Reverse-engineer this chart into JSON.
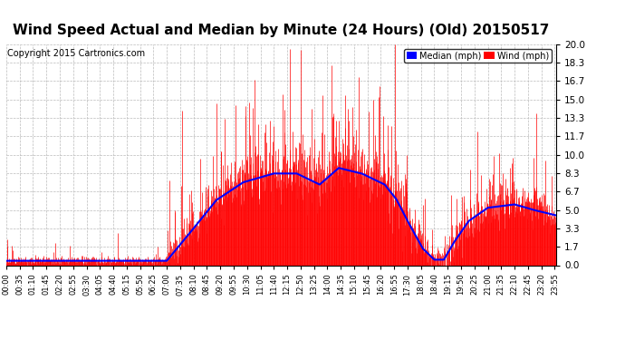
{
  "title": "Wind Speed Actual and Median by Minute (24 Hours) (Old) 20150517",
  "copyright": "Copyright 2015 Cartronics.com",
  "yticks": [
    0.0,
    1.7,
    3.3,
    5.0,
    6.7,
    8.3,
    10.0,
    11.7,
    13.3,
    15.0,
    16.7,
    18.3,
    20.0
  ],
  "ymin": 0.0,
  "ymax": 20.0,
  "wind_color": "#ff0000",
  "median_color": "#0000ff",
  "background_color": "#ffffff",
  "grid_color": "#bbbbbb",
  "title_fontsize": 11,
  "copyright_fontsize": 7,
  "legend_median_label": "Median (mph)",
  "legend_wind_label": "Wind (mph)",
  "num_minutes": 1440,
  "tick_interval": 35
}
